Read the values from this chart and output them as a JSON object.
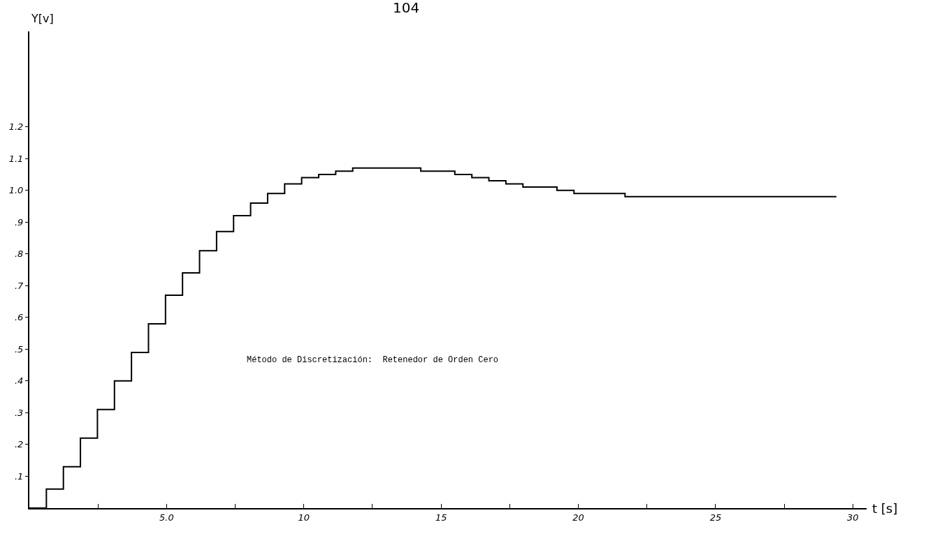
{
  "chart_data": {
    "type": "step",
    "xlabel": "t [s]",
    "ylabel": "Y[v]",
    "annotations": [
      "104",
      "Método de Discretización:  Retenedor de Orden Cero"
    ],
    "x": [
      0,
      0.62,
      1.24,
      1.86,
      2.48,
      3.1,
      3.72,
      4.34,
      4.96,
      5.58,
      6.2,
      6.82,
      7.44,
      8.06,
      8.68,
      9.3,
      9.92,
      10.54,
      11.16,
      11.78,
      12.4,
      13.02,
      13.64,
      14.26,
      14.88,
      15.5,
      16.12,
      16.74,
      17.36,
      17.98,
      18.6,
      19.22,
      19.84,
      20.46,
      21.08,
      21.7,
      22.32,
      29.4
    ],
    "series": [
      {
        "color": "#000000",
        "values": [
          0,
          0.06,
          0.13,
          0.22,
          0.31,
          0.4,
          0.49,
          0.58,
          0.67,
          0.74,
          0.81,
          0.87,
          0.92,
          0.96,
          0.99,
          1.02,
          1.04,
          1.05,
          1.06,
          1.07,
          1.07,
          1.07,
          1.07,
          1.06,
          1.06,
          1.05,
          1.04,
          1.03,
          1.02,
          1.01,
          1.01,
          1.0,
          0.99,
          0.99,
          0.99,
          0.98,
          0.98,
          0.98
        ]
      }
    ],
    "xlim": [
      0,
      30.5
    ],
    "ylim": [
      0,
      1.5
    ],
    "xticks": [
      {
        "value": 2.5,
        "label": null
      },
      {
        "value": 5,
        "label": "5.0"
      },
      {
        "value": 7.5,
        "label": null
      },
      10,
      {
        "value": 12.5,
        "label": null
      },
      15,
      {
        "value": 17.5,
        "label": null
      },
      20,
      {
        "value": 22.5,
        "label": null
      },
      25,
      {
        "value": 27.5,
        "label": null
      },
      30
    ],
    "yticks": [
      {
        "value": 0.1,
        "label": ".1"
      },
      {
        "value": 0.2,
        "label": ".2"
      },
      {
        "value": 0.3,
        "label": ".3"
      },
      {
        "value": 0.4,
        "label": ".4"
      },
      {
        "value": 0.5,
        "label": ".5"
      },
      {
        "value": 0.6,
        "label": ".6"
      },
      {
        "value": 0.7,
        "label": ".7"
      },
      {
        "value": 0.8,
        "label": ".8"
      },
      {
        "value": 0.9,
        "label": ".9"
      },
      {
        "value": 1.0,
        "label": "1.0"
      },
      {
        "value": 1.1,
        "label": "1.1"
      },
      {
        "value": 1.2,
        "label": "1.2"
      }
    ],
    "marker": "none",
    "line_style": "solid"
  }
}
